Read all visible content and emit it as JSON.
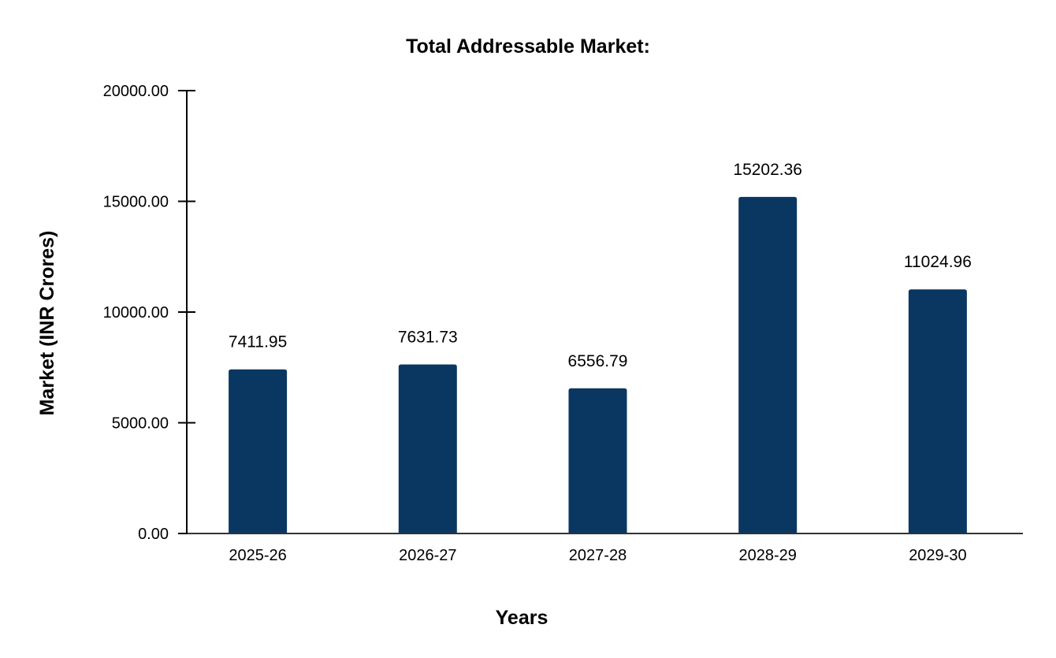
{
  "chart_data": {
    "type": "bar",
    "title": "Total Addressable Market:",
    "xlabel": "Years",
    "ylabel": "Market (INR Crores)",
    "categories": [
      "2025-26",
      "2026-27",
      "2027-28",
      "2028-29",
      "2029-30"
    ],
    "values": [
      7411.95,
      7631.73,
      6556.79,
      15202.36,
      11024.96
    ],
    "value_labels": [
      "7411.95",
      "7631.73",
      "6556.79",
      "15202.36",
      "11024.96"
    ],
    "ylim": [
      0,
      20000
    ],
    "yticks": [
      0,
      5000,
      10000,
      15000,
      20000
    ],
    "ytick_labels": [
      "0.00",
      "5000.00",
      "10000.00",
      "15000.00",
      "20000.00"
    ],
    "grid": false,
    "bar_color": "#0a3761"
  }
}
